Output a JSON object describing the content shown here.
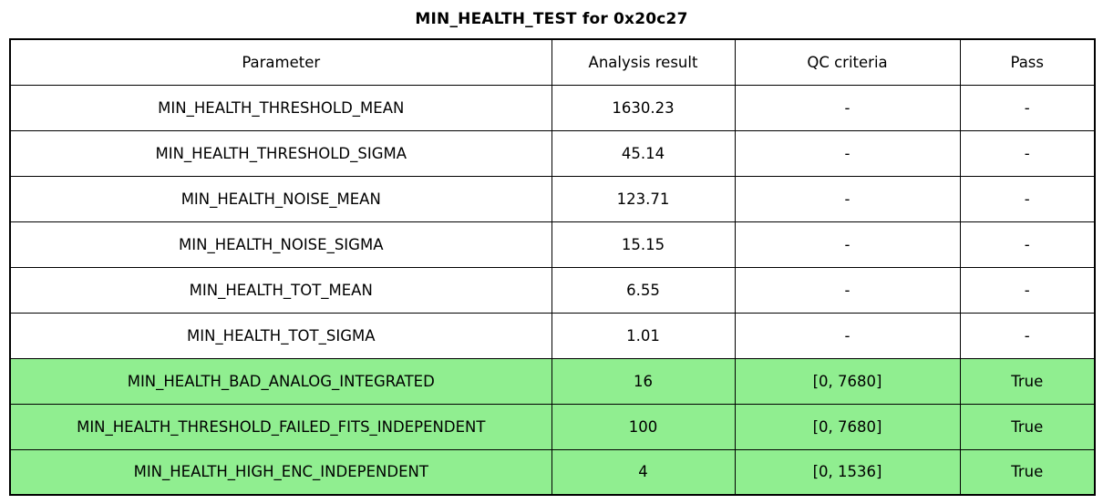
{
  "title": "MIN_HEALTH_TEST for 0x20c27",
  "table": {
    "columns": [
      "Parameter",
      "Analysis result",
      "QC criteria",
      "Pass"
    ],
    "rows": [
      {
        "parameter": "MIN_HEALTH_THRESHOLD_MEAN",
        "result": "1630.23",
        "qc": "-",
        "pass": "-",
        "highlight": false
      },
      {
        "parameter": "MIN_HEALTH_THRESHOLD_SIGMA",
        "result": "45.14",
        "qc": "-",
        "pass": "-",
        "highlight": false
      },
      {
        "parameter": "MIN_HEALTH_NOISE_MEAN",
        "result": "123.71",
        "qc": "-",
        "pass": "-",
        "highlight": false
      },
      {
        "parameter": "MIN_HEALTH_NOISE_SIGMA",
        "result": "15.15",
        "qc": "-",
        "pass": "-",
        "highlight": false
      },
      {
        "parameter": "MIN_HEALTH_TOT_MEAN",
        "result": "6.55",
        "qc": "-",
        "pass": "-",
        "highlight": false
      },
      {
        "parameter": "MIN_HEALTH_TOT_SIGMA",
        "result": "1.01",
        "qc": "-",
        "pass": "-",
        "highlight": false
      },
      {
        "parameter": "MIN_HEALTH_BAD_ANALOG_INTEGRATED",
        "result": "16",
        "qc": "[0, 7680]",
        "pass": "True",
        "highlight": true
      },
      {
        "parameter": "MIN_HEALTH_THRESHOLD_FAILED_FITS_INDEPENDENT",
        "result": "100",
        "qc": "[0, 7680]",
        "pass": "True",
        "highlight": true
      },
      {
        "parameter": "MIN_HEALTH_HIGH_ENC_INDEPENDENT",
        "result": "4",
        "qc": "[0, 1536]",
        "pass": "True",
        "highlight": true
      }
    ]
  },
  "colors": {
    "pass_green": "#90EE90",
    "border": "#000000",
    "background": "#FFFFFF"
  }
}
